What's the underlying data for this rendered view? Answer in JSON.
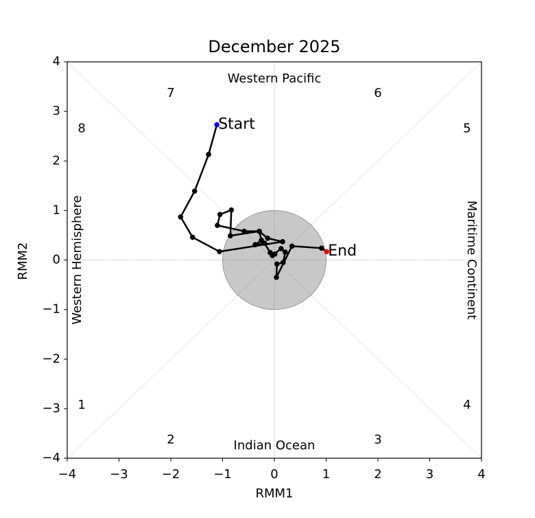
{
  "chart_data": {
    "type": "phase",
    "title": "December 2025",
    "x_label": "RMM1",
    "y_label": "RMM2",
    "xlim": [
      -4,
      4
    ],
    "ylim": [
      -4,
      4
    ],
    "xticks": [
      {
        "value": -4,
        "label": "−4"
      },
      {
        "value": -3,
        "label": "−3"
      },
      {
        "value": -2,
        "label": "−2"
      },
      {
        "value": -1,
        "label": "−1"
      },
      0,
      1,
      2,
      3,
      4
    ],
    "yticks": [
      {
        "value": -4,
        "label": "−4"
      },
      {
        "value": -3,
        "label": "−3"
      },
      {
        "value": -2,
        "label": "−2"
      },
      {
        "value": -1,
        "label": "−1"
      },
      0,
      1,
      2,
      3,
      4
    ],
    "phase_labels": [
      "1",
      "2",
      "3",
      "4",
      "5",
      "6",
      "7",
      "8"
    ],
    "region_labels": [
      "Western Pacific",
      "Indian Ocean",
      "Western Hemisphere",
      "Maritime Continent"
    ],
    "start_label": "Start",
    "end_label": "End",
    "color": "black",
    "start_color": "blue",
    "end_color": "red",
    "x": [
      -1.11,
      -1.27,
      -1.54,
      -1.81,
      -1.58,
      -1.06,
      0.16,
      -0.13,
      -0.29,
      -0.58,
      -1.1,
      -1.05,
      -0.83,
      -0.85,
      -0.29,
      -0.25,
      -0.37,
      -0.19,
      -0.08,
      0.01,
      -0.04,
      0.13,
      0.21,
      0.17,
      0.05,
      0.04,
      0.34,
      0.91,
      1.01
    ],
    "y": [
      2.73,
      2.13,
      1.39,
      0.87,
      0.46,
      0.17,
      0.37,
      0.44,
      0.58,
      0.58,
      0.7,
      0.92,
      1.01,
      0.49,
      0.58,
      0.4,
      0.31,
      0.34,
      0.15,
      0.12,
      0.09,
      0.23,
      0.16,
      -0.05,
      -0.08,
      -0.35,
      0.28,
      0.24,
      0.17
    ]
  }
}
